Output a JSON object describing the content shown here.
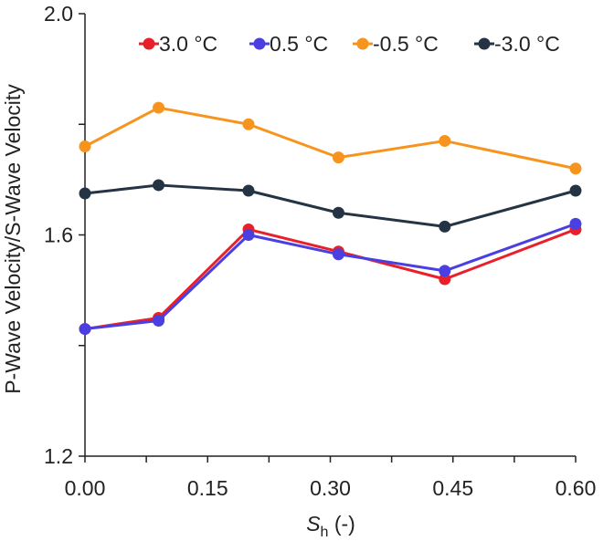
{
  "chart_data": {
    "type": "line",
    "title": "",
    "xlabel_main": "S",
    "xlabel_sub": "h",
    "xlabel_unit": " (-)",
    "ylabel": "P-Wave Velocity/S-Wave Velocity",
    "xlim": [
      0.0,
      0.6
    ],
    "ylim": [
      1.2,
      2.0
    ],
    "x_ticks": [
      0.0,
      0.15,
      0.3,
      0.45,
      0.6
    ],
    "x_tick_labels": [
      "0.00",
      "0.15",
      "0.30",
      "0.45",
      "0.60"
    ],
    "y_ticks": [
      1.2,
      1.6,
      2.0
    ],
    "y_tick_labels": [
      "1.2",
      "1.6",
      "2.0"
    ],
    "grid": false,
    "legend_position": "top-right",
    "x": [
      0.0,
      0.09,
      0.2,
      0.31,
      0.44,
      0.6
    ],
    "series": [
      {
        "name": "3.0 °C",
        "color": "#e8202a",
        "values": [
          1.43,
          1.45,
          1.61,
          1.57,
          1.52,
          1.61
        ]
      },
      {
        "name": "0.5 °C",
        "color": "#4a3fe0",
        "values": [
          1.43,
          1.445,
          1.6,
          1.565,
          1.535,
          1.62
        ]
      },
      {
        "name": "-0.5 °C",
        "color": "#f7941d",
        "values": [
          1.76,
          1.83,
          1.8,
          1.74,
          1.77,
          1.72
        ]
      },
      {
        "name": "-3.0 °C",
        "color": "#243444",
        "values": [
          1.675,
          1.69,
          1.68,
          1.64,
          1.615,
          1.68
        ]
      }
    ]
  }
}
